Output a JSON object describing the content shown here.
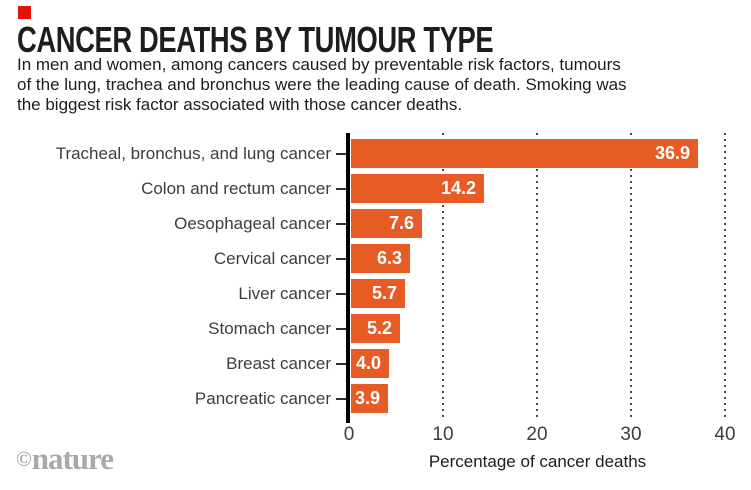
{
  "brand": {
    "square_color": "#e3120b",
    "watermark_copyright": "©",
    "watermark_name": "nature"
  },
  "header": {
    "title": "CANCER DEATHS BY TUMOUR TYPE",
    "subtitle_lines": [
      "In men and women, among cancers caused by preventable risk factors, tumours",
      "of the lung, trachea and bronchus were the leading cause of death. Smoking was",
      "the biggest risk factor associated with those cancer deaths."
    ]
  },
  "chart_data": {
    "type": "bar",
    "orientation": "horizontal",
    "title": "CANCER DEATHS BY TUMOUR TYPE",
    "categories": [
      "Tracheal, bronchus, and lung cancer",
      "Colon and rectum cancer",
      "Oesophageal cancer",
      "Cervical cancer",
      "Liver cancer",
      "Stomach cancer",
      "Breast cancer",
      "Pancreatic cancer"
    ],
    "values": [
      36.9,
      14.2,
      7.6,
      6.3,
      5.7,
      5.2,
      4.0,
      3.9
    ],
    "value_labels": [
      "36.9",
      "14.2",
      "7.6",
      "6.3",
      "5.7",
      "5.2",
      "4.0",
      "3.9"
    ],
    "xlabel": "Percentage of cancer deaths",
    "ylabel": "",
    "xlim": [
      0,
      40
    ],
    "x_ticks": [
      0,
      10,
      20,
      30,
      40
    ],
    "x_tick_labels": [
      "0",
      "10",
      "20",
      "30",
      "40"
    ],
    "grid": "vertical dotted lines at x ticks",
    "legend": "none",
    "bar_color": "#e65c24",
    "value_label_color": "#ffffff",
    "axis_color": "#000000",
    "gridline_color": "#4b4b4b"
  }
}
